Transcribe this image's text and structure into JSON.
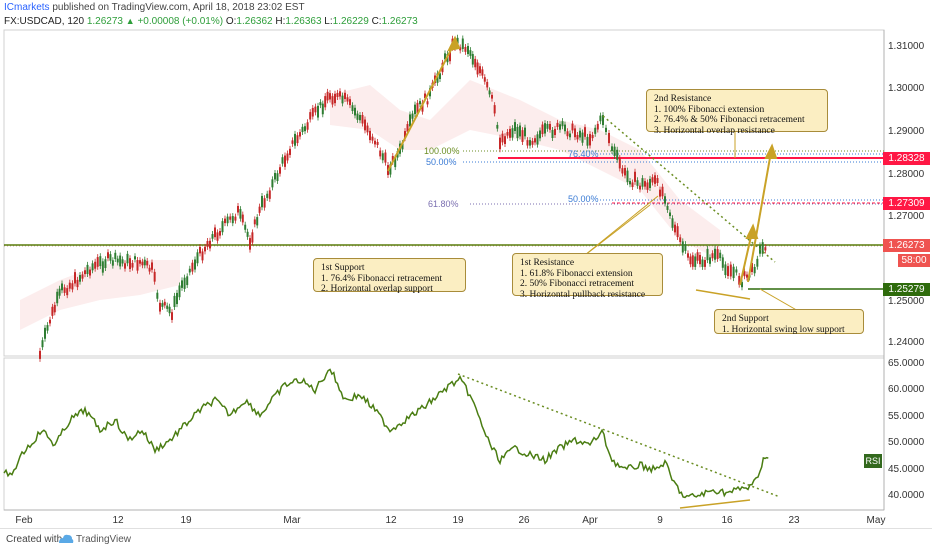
{
  "header": {
    "publisher": "ICmarkets",
    "published_text": "published on TradingView.com, April 18, 2018 23:02 EST",
    "symbol": "FX:USDCAD, 120",
    "last": "1.26273",
    "change": "+0.00008 (+0.01%)",
    "open_label": "O:",
    "open": "1.26362",
    "high_label": "H:",
    "high": "1.26363",
    "low_label": "L:",
    "low": "1.26229",
    "close_label": "C:",
    "close": "1.26273"
  },
  "price_axis": [
    "1.31000",
    "1.30000",
    "1.29000",
    "1.28000",
    "1.27000",
    "1.25000",
    "1.24000"
  ],
  "price_tags": {
    "r2": "1.28328",
    "r1": "1.27309",
    "last": "1.26273",
    "countdown": "58:00",
    "s2": "1.25279"
  },
  "rsi_axis": [
    "65.0000",
    "60.0000",
    "55.0000",
    "50.0000",
    "45.0000",
    "40.0000"
  ],
  "rsi_label": "RSI",
  "time_axis": [
    "Feb",
    "12",
    "19",
    "Mar",
    "12",
    "19",
    "26",
    "Apr",
    "9",
    "16",
    "23",
    "May"
  ],
  "fib_levels": {
    "a_100": "100.00%",
    "a_50": "50.00%",
    "a_764": "76.40%",
    "b_618": "61.80%",
    "b_50": "50.00%"
  },
  "callouts": {
    "second_resistance": {
      "title": "2nd Resistance",
      "lines": [
        "1. 100% Fibonacci extension",
        "2. 76.4% & 50% Fibonacci retracement",
        "3. Horizontal overlap resistance"
      ]
    },
    "first_resistance": {
      "title": "1st Resistance",
      "lines": [
        "1. 61.8% Fibonacci extension",
        "2. 50% Fibonacci retracement",
        "3. Horizontal pullback resistance"
      ]
    },
    "first_support": {
      "title": "1st Support",
      "lines": [
        "1. 76.4% Fibonacci retracement",
        "2. Horizontal overlap support"
      ]
    },
    "second_support": {
      "title": "2nd Support",
      "lines": [
        "1. Horizontal swing low support"
      ]
    }
  },
  "footer": {
    "created": "Created with",
    "brand": "TradingView"
  },
  "colors": {
    "candle_up": "#2e7d32",
    "candle_down": "#c62828",
    "resistance": "#ff1744",
    "support": "#5a7d0a",
    "rsi_line": "#4a7d12",
    "arrow": "#c9a227"
  }
}
